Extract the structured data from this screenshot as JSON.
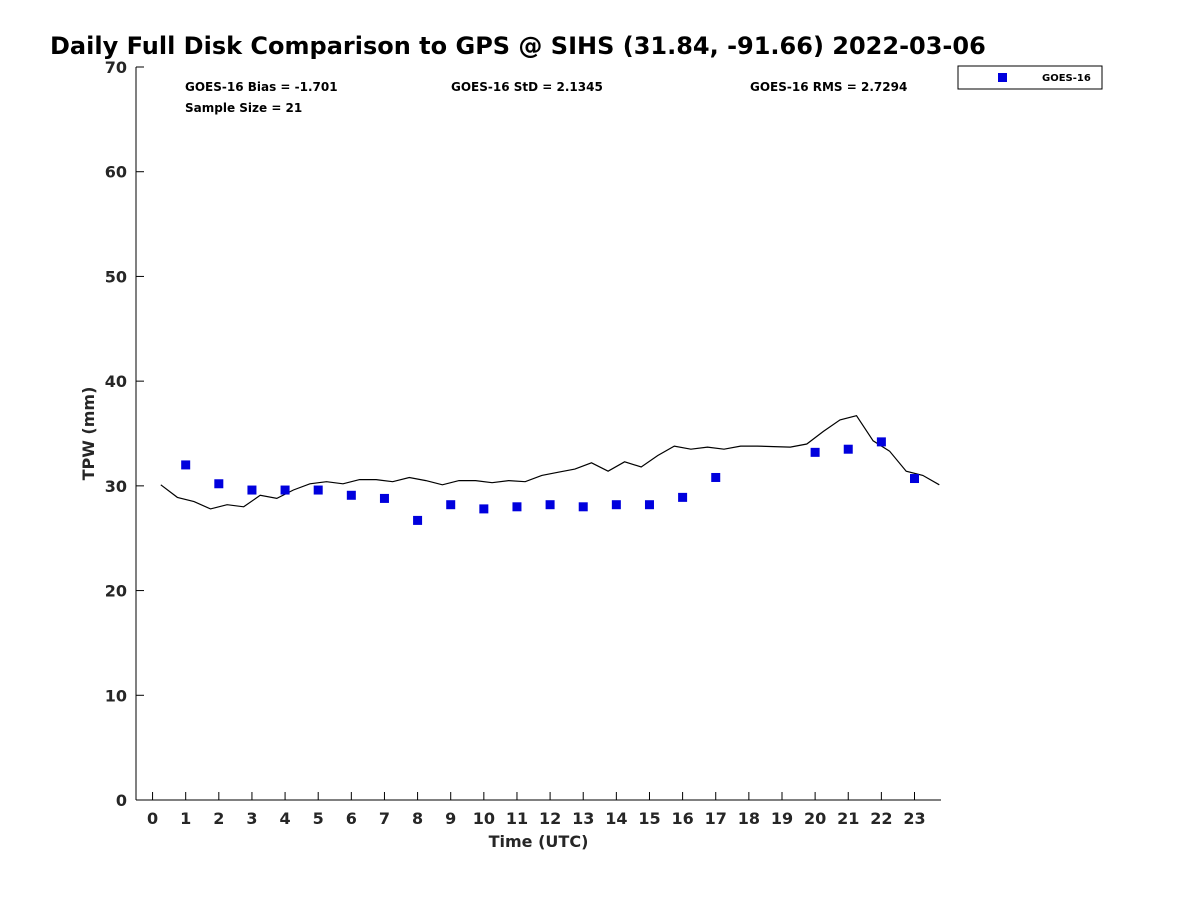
{
  "chart_data": {
    "type": "scatter",
    "title": "Daily Full Disk Comparison to GPS @ SIHS (31.84, -91.66) 2022-03-06",
    "xlabel": "Time (UTC)",
    "ylabel": "TPW (mm)",
    "xlim": [
      -0.5,
      23.8
    ],
    "ylim": [
      0,
      70
    ],
    "xticks": [
      "0",
      "1",
      "2",
      "3",
      "4",
      "5",
      "6",
      "7",
      "8",
      "9",
      "10",
      "11",
      "12",
      "13",
      "14",
      "15",
      "16",
      "17",
      "18",
      "19",
      "20",
      "21",
      "22",
      "23"
    ],
    "yticks": [
      "0",
      "10",
      "20",
      "30",
      "40",
      "50",
      "60",
      "70"
    ],
    "grid": false,
    "legend_position": "top-right, outside plot",
    "stats": {
      "bias": "GOES-16 Bias = -1.701",
      "std": "GOES-16 StD = 2.1345",
      "rms": "GOES-16 RMS = 2.7294",
      "sample": "Sample Size = 21"
    },
    "series": [
      {
        "name": "GOES-16",
        "kind": "scatter",
        "marker": "square",
        "color": "#0000dd",
        "x": [
          1,
          2,
          3,
          4,
          5,
          6,
          7,
          8,
          9,
          10,
          11,
          12,
          13,
          14,
          15,
          16,
          17,
          20,
          21,
          22,
          23
        ],
        "y": [
          32.0,
          30.2,
          29.6,
          29.6,
          29.6,
          29.1,
          28.8,
          26.7,
          28.2,
          27.8,
          28.0,
          28.2,
          28.0,
          28.2,
          28.2,
          28.9,
          30.8,
          33.2,
          33.5,
          34.2,
          30.7
        ]
      },
      {
        "kind": "line",
        "color": "#000000",
        "x": [
          0.25,
          0.75,
          1.25,
          1.75,
          2.25,
          2.75,
          3.25,
          3.75,
          4.25,
          4.75,
          5.25,
          5.75,
          6.25,
          6.75,
          7.25,
          7.75,
          8.25,
          8.75,
          9.25,
          9.75,
          10.25,
          10.75,
          11.25,
          11.75,
          12.25,
          12.75,
          13.25,
          13.75,
          14.25,
          14.75,
          15.25,
          15.75,
          16.25,
          16.75,
          17.25,
          17.75,
          18.25,
          18.75,
          19.25,
          19.75,
          20.25,
          20.75,
          21.25,
          21.75,
          22.25,
          22.75,
          23.25,
          23.75
        ],
        "y": [
          30.1,
          28.9,
          28.5,
          27.8,
          28.2,
          28.0,
          29.1,
          28.8,
          29.6,
          30.2,
          30.4,
          30.2,
          30.6,
          30.6,
          30.4,
          30.8,
          30.5,
          30.1,
          30.5,
          30.5,
          30.3,
          30.5,
          30.4,
          31.0,
          31.3,
          31.6,
          32.2,
          31.4,
          32.3,
          31.8,
          32.9,
          33.8,
          33.5,
          33.7,
          33.5,
          33.8,
          33.8,
          33.75,
          33.7,
          34.0,
          35.2,
          36.3,
          36.7,
          34.3,
          33.3,
          31.4,
          31.0,
          30.1
        ]
      }
    ]
  }
}
